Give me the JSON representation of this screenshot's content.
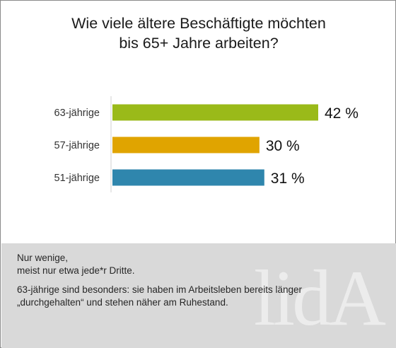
{
  "chart_data": {
    "type": "bar",
    "orientation": "horizontal",
    "title_lines": [
      "Wie viele ältere Beschäftigte möchten",
      "bis 65+ Jahre arbeiten?"
    ],
    "categories": [
      "63-jährige",
      "57-jährige",
      "51-jährige"
    ],
    "values": [
      42,
      30,
      31
    ],
    "value_labels": [
      "42 %",
      "30 %",
      "31 %"
    ],
    "colors": [
      "#9aba19",
      "#e0a400",
      "#2f86ad"
    ],
    "xlim": [
      0,
      42
    ],
    "grid": false,
    "legend": "none"
  },
  "footer": {
    "line1": "Nur wenige,",
    "line2": "meist nur etwa jede*r Dritte.",
    "line3": "63-jährige sind besonders: sie haben im Arbeitsleben bereits länger",
    "line4": "„durchgehalten“ und stehen näher am Ruhestand.",
    "logo_text": "lidA"
  }
}
